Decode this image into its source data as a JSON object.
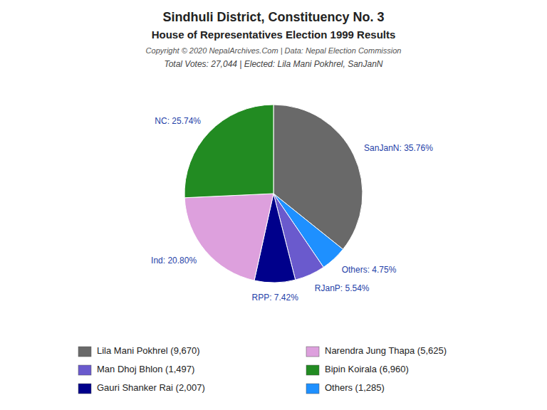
{
  "chart_data": {
    "type": "pie",
    "title": "Sindhuli District, Constituency No. 3",
    "subtitle": [
      "House of Representatives Election 1999 Results",
      "Copyright © 2020 NepalArchives.Com | Data: Nepal Election Commission",
      "Total Votes: 27,044 | Elected: Lila Mani Pokhrel, SanJanN"
    ],
    "values": [
      35.76,
      4.75,
      5.54,
      7.42,
      20.8,
      25.74
    ],
    "value_labels": [
      "SanJanN: 35.76%",
      "Others: 4.75%",
      "RJanP: 5.54%",
      "RPP: 7.42%",
      "Ind: 20.80%",
      "NC: 25.74%"
    ],
    "colors": [
      "#696969",
      "#1E90FF",
      "#6A5ACD",
      "#00008B",
      "#DDA0DD",
      "#228B22"
    ],
    "data_labels": true,
    "legend": "bottom",
    "legend_entries": [
      {
        "label": "Lila Mani Pokhrel (9,670)",
        "color": "#696969"
      },
      {
        "label": "Narendra Jung Thapa (5,625)",
        "color": "#DDA0DD"
      },
      {
        "label": "Man Dhoj Bhlon (1,497)",
        "color": "#6A5ACD"
      },
      {
        "label": "Bipin Koirala (6,960)",
        "color": "#228B22"
      },
      {
        "label": "Gauri Shanker Rai (2,007)",
        "color": "#00008B"
      },
      {
        "label": "Others (1,285)",
        "color": "#1E90FF"
      }
    ]
  }
}
